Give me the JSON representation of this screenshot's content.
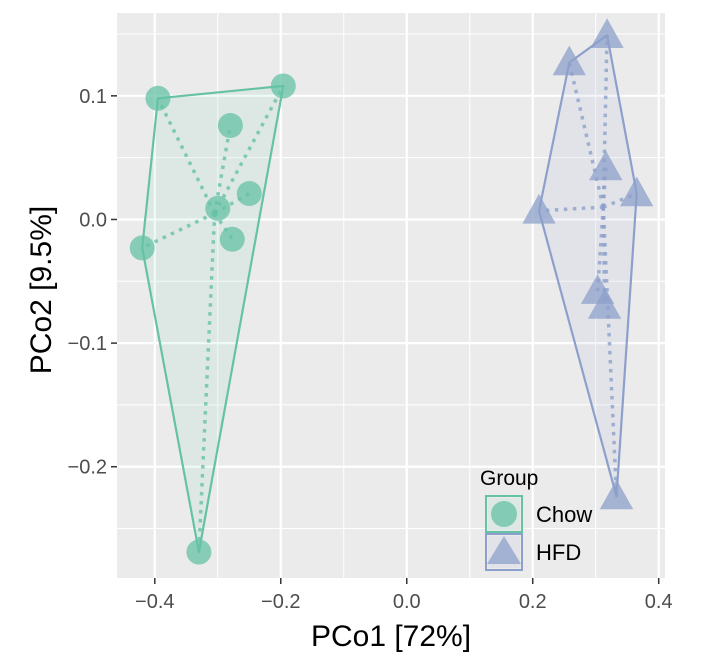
{
  "chart_data": {
    "type": "scatter",
    "title": "",
    "xlabel": "PCo1 [72%]",
    "ylabel": "PCo2 [9.5%]",
    "xlim": [
      -0.46,
      0.41
    ],
    "ylim": [
      -0.29,
      0.167
    ],
    "xticks": [
      -0.4,
      -0.2,
      0.0,
      0.2,
      0.4
    ],
    "xtick_labels": [
      "−0.4",
      "−0.2",
      "0.0",
      "0.2",
      "0.4"
    ],
    "yticks": [
      -0.2,
      -0.1,
      0.0,
      0.1
    ],
    "ytick_labels": [
      "−0.2",
      "−0.1",
      "0.0",
      "0.1"
    ],
    "grid": true,
    "legend": {
      "title": "Group",
      "position": "bottom-right"
    },
    "series": [
      {
        "name": "Chow",
        "marker": "circle",
        "color": "#66c2a5",
        "centroid": [
          -0.305,
          0.005
        ],
        "hull": [
          [
            -0.196,
            0.108
          ],
          [
            -0.395,
            0.098
          ],
          [
            -0.42,
            -0.023
          ],
          [
            -0.33,
            -0.269
          ]
        ],
        "points": [
          [
            -0.395,
            0.098
          ],
          [
            -0.196,
            0.108
          ],
          [
            -0.28,
            0.076
          ],
          [
            -0.25,
            0.021
          ],
          [
            -0.3,
            0.009
          ],
          [
            -0.277,
            -0.016
          ],
          [
            -0.42,
            -0.023
          ],
          [
            -0.33,
            -0.269
          ]
        ]
      },
      {
        "name": "HFD",
        "marker": "triangle",
        "color": "#8da0cb",
        "centroid": [
          0.312,
          0.01
        ],
        "hull": [
          [
            0.318,
            0.149
          ],
          [
            0.365,
            0.021
          ],
          [
            0.333,
            -0.224
          ],
          [
            0.21,
            0.007
          ],
          [
            0.258,
            0.127
          ]
        ],
        "points": [
          [
            0.318,
            0.149
          ],
          [
            0.258,
            0.127
          ],
          [
            0.316,
            0.042
          ],
          [
            0.365,
            0.021
          ],
          [
            0.21,
            0.007
          ],
          [
            0.303,
            -0.058
          ],
          [
            0.314,
            -0.07
          ],
          [
            0.333,
            -0.224
          ]
        ]
      }
    ]
  }
}
